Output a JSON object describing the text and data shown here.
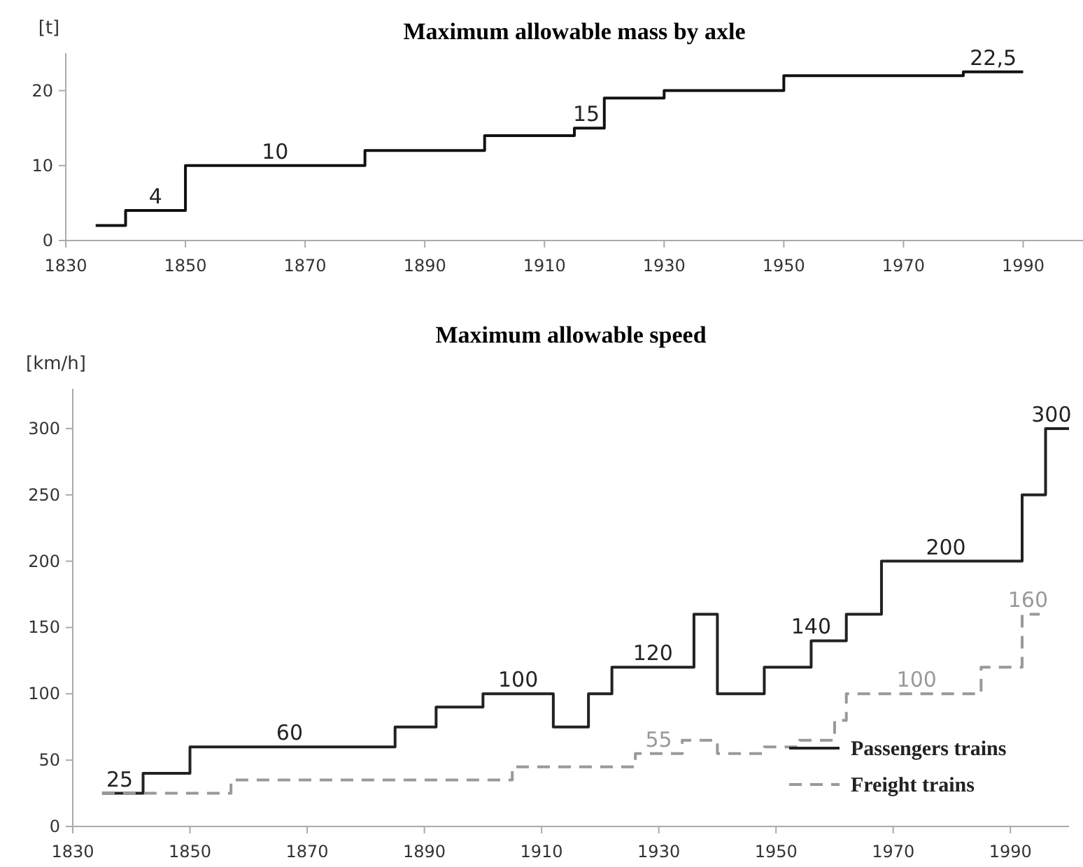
{
  "chart_data": [
    {
      "type": "step",
      "title": "Maximum allowable mass by axle",
      "ylabel": "[t]",
      "xlim": [
        1830,
        2000
      ],
      "xticks": [
        1830,
        1850,
        1870,
        1890,
        1910,
        1930,
        1950,
        1970,
        1990
      ],
      "ylim": [
        0,
        25
      ],
      "yticks": [
        0,
        10,
        20
      ],
      "grid": false,
      "legend": false,
      "series": [
        {
          "color": "#111111",
          "line_style": "solid",
          "x": [
            1835,
            1840,
            1850,
            1880,
            1900,
            1915,
            1920,
            1930,
            1950,
            1980,
            1990
          ],
          "values": [
            2,
            4,
            10,
            12,
            14,
            15,
            19,
            20,
            22,
            22.5,
            22.5
          ]
        }
      ],
      "annotations": [
        {
          "text": "4",
          "x": 1845,
          "y": 4
        },
        {
          "text": "10",
          "x": 1865,
          "y": 10
        },
        {
          "text": "15",
          "x": 1917,
          "y": 15
        },
        {
          "text": "22,5",
          "x": 1985,
          "y": 22.5
        }
      ]
    },
    {
      "type": "step",
      "title": "Maximum allowable speed",
      "ylabel": "[km/h]",
      "xlim": [
        1830,
        2000
      ],
      "xticks": [
        1830,
        1850,
        1870,
        1890,
        1910,
        1930,
        1950,
        1970,
        1990
      ],
      "ylim": [
        0,
        330
      ],
      "yticks": [
        0,
        50,
        100,
        150,
        200,
        250,
        300
      ],
      "grid": false,
      "legend": "bottom right",
      "series": [
        {
          "name": "Passengers trains",
          "color": "#222222",
          "line_style": "solid",
          "x": [
            1835,
            1842,
            1850,
            1885,
            1892,
            1900,
            1912,
            1918,
            1922,
            1936,
            1940,
            1948,
            1956,
            1962,
            1968,
            1992,
            1996,
            2000
          ],
          "values": [
            25,
            40,
            60,
            75,
            90,
            100,
            75,
            100,
            120,
            160,
            100,
            120,
            140,
            160,
            200,
            250,
            300,
            300
          ]
        },
        {
          "name": "Freight trains",
          "color": "#999999",
          "line_style": "dashed",
          "x": [
            1835,
            1857,
            1905,
            1926,
            1934,
            1940,
            1948,
            1954,
            1960,
            1962,
            1985,
            1992,
            1995
          ],
          "values": [
            25,
            35,
            45,
            55,
            65,
            55,
            60,
            65,
            80,
            100,
            120,
            160,
            160
          ]
        }
      ],
      "annotations": [
        {
          "text": "25",
          "x": 1838,
          "y": 25
        },
        {
          "text": "60",
          "x": 1867,
          "y": 60
        },
        {
          "text": "100",
          "x": 1906,
          "y": 100
        },
        {
          "text": "120",
          "x": 1929,
          "y": 120
        },
        {
          "text": "140",
          "x": 1956,
          "y": 140
        },
        {
          "text": "200",
          "x": 1979,
          "y": 200
        },
        {
          "text": "300",
          "x": 1997,
          "y": 300
        },
        {
          "text": "55",
          "x": 1930,
          "y": 55
        },
        {
          "text": "100",
          "x": 1974,
          "y": 100
        },
        {
          "text": "160",
          "x": 1993,
          "y": 160
        }
      ]
    }
  ]
}
